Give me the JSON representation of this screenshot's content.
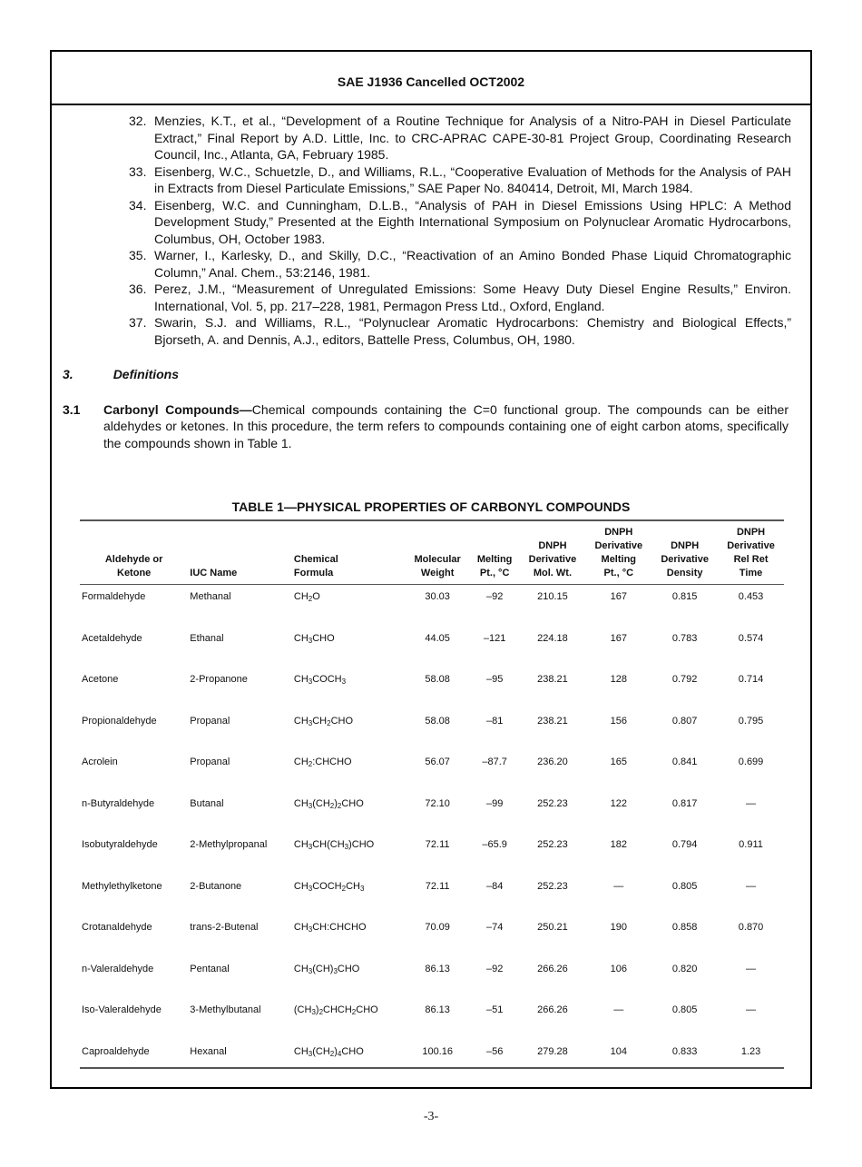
{
  "header": {
    "title": "SAE J1936 Cancelled OCT2002"
  },
  "references": [
    {
      "num": "32.",
      "text": "Menzies, K.T., et al., “Development of a Routine Technique for Analysis of a Nitro-PAH in Diesel Particulate Extract,” Final Report by A.D. Little, Inc. to CRC-APRAC CAPE-30-81 Project Group, Coordinating Research Council, Inc., Atlanta, GA, February 1985."
    },
    {
      "num": "33.",
      "text": "Eisenberg, W.C., Schuetzle, D., and Williams, R.L., “Cooperative Evaluation of Methods for the Analysis of PAH in Extracts from Diesel Particulate Emissions,” SAE Paper No. 840414, Detroit, MI, March 1984."
    },
    {
      "num": "34.",
      "text": "Eisenberg, W.C. and Cunningham, D.L.B., “Analysis of PAH in Diesel Emissions Using HPLC: A Method Development Study,” Presented at the Eighth International Symposium on Polynuclear Aromatic Hydrocarbons, Columbus, OH, October 1983."
    },
    {
      "num": "35.",
      "text": "Warner, I., Karlesky, D., and Skilly, D.C., “Reactivation of an Amino Bonded Phase Liquid Chromatographic Column,” Anal. Chem., 53:2146, 1981."
    },
    {
      "num": "36.",
      "text": "Perez, J.M., “Measurement of Unregulated Emissions: Some Heavy Duty Diesel Engine Results,” Environ. International, Vol. 5, pp. 217–228, 1981, Permagon Press Ltd., Oxford, England."
    },
    {
      "num": "37.",
      "text": "Swarin, S.J. and Williams, R.L., “Polynuclear Aromatic Hydrocarbons: Chemistry and Biological Effects,” Bjorseth, A. and Dennis, A.J., editors, Battelle Press, Columbus, OH, 1980."
    }
  ],
  "section3": {
    "num": "3.",
    "title": "Definitions"
  },
  "section31": {
    "num": "3.1",
    "term": "Carbonyl Compounds—",
    "text": "Chemical compounds containing the C=0 functional group.  The compounds can be either aldehydes or ketones.  In this procedure, the term refers to compounds containing one of eight carbon atoms, specifically the compounds shown in Table 1."
  },
  "table": {
    "title": "TABLE 1—PHYSICAL PROPERTIES OF CARBONYL COMPOUNDS",
    "headers": [
      [
        "Aldehyde or",
        "Ketone"
      ],
      [
        "IUC Name"
      ],
      [
        "Chemical",
        "Formula"
      ],
      [
        "Molecular",
        "Weight"
      ],
      [
        "Melting",
        "Pt., °C"
      ],
      [
        "DNPH",
        "Derivative",
        "Mol. Wt."
      ],
      [
        "DNPH",
        "Derivative",
        "Melting",
        "Pt., °C"
      ],
      [
        "DNPH",
        "Derivative",
        "Density"
      ],
      [
        "DNPH",
        "Derivative",
        "Rel Ret",
        "Time"
      ]
    ],
    "rows": [
      {
        "name": "Formaldehyde",
        "iuc": "Methanal",
        "formula": [
          [
            "CH",
            ""
          ],
          [
            "2",
            "s"
          ],
          [
            "O",
            ""
          ]
        ],
        "mw": "30.03",
        "mp": "–92",
        "dmw": "210.15",
        "dmp": "167",
        "dens": "0.815",
        "rrt": "0.453"
      },
      {
        "name": "Acetaldehyde",
        "iuc": "Ethanal",
        "formula": [
          [
            "CH",
            ""
          ],
          [
            "3",
            "s"
          ],
          [
            "CHO",
            ""
          ]
        ],
        "mw": "44.05",
        "mp": "–121",
        "dmw": "224.18",
        "dmp": "167",
        "dens": "0.783",
        "rrt": "0.574"
      },
      {
        "name": "Acetone",
        "iuc": "2-Propanone",
        "formula": [
          [
            "CH",
            ""
          ],
          [
            "3",
            "s"
          ],
          [
            "COCH",
            ""
          ],
          [
            "3",
            "s"
          ]
        ],
        "mw": "58.08",
        "mp": "–95",
        "dmw": "238.21",
        "dmp": "128",
        "dens": "0.792",
        "rrt": "0.714"
      },
      {
        "name": "Propionaldehyde",
        "iuc": "Propanal",
        "formula": [
          [
            "CH",
            ""
          ],
          [
            "3",
            "s"
          ],
          [
            "CH",
            ""
          ],
          [
            "2",
            "s"
          ],
          [
            "CHO",
            ""
          ]
        ],
        "mw": "58.08",
        "mp": "–81",
        "dmw": "238.21",
        "dmp": "156",
        "dens": "0.807",
        "rrt": "0.795"
      },
      {
        "name": "Acrolein",
        "iuc": "Propanal",
        "formula": [
          [
            "CH",
            ""
          ],
          [
            "2",
            "s"
          ],
          [
            ":CHCHO",
            ""
          ]
        ],
        "mw": "56.07",
        "mp": "–87.7",
        "dmw": "236.20",
        "dmp": "165",
        "dens": "0.841",
        "rrt": "0.699"
      },
      {
        "name": "n-Butyraldehyde",
        "iuc": "Butanal",
        "formula": [
          [
            "CH",
            ""
          ],
          [
            "3",
            "s"
          ],
          [
            "(CH",
            ""
          ],
          [
            "2",
            "s"
          ],
          [
            ")",
            ""
          ],
          [
            "2",
            "s"
          ],
          [
            "CHO",
            ""
          ]
        ],
        "mw": "72.10",
        "mp": "–99",
        "dmw": "252.23",
        "dmp": "122",
        "dens": "0.817",
        "rrt": "—"
      },
      {
        "name": "Isobutyraldehyde",
        "iuc": "2-Methylpropanal",
        "formula": [
          [
            "CH",
            ""
          ],
          [
            "3",
            "s"
          ],
          [
            "CH(CH",
            ""
          ],
          [
            "3",
            "s"
          ],
          [
            ")CHO",
            ""
          ]
        ],
        "mw": "72.11",
        "mp": "–65.9",
        "dmw": "252.23",
        "dmp": "182",
        "dens": "0.794",
        "rrt": "0.911"
      },
      {
        "name": "Methylethylketone",
        "iuc": "2-Butanone",
        "formula": [
          [
            "CH",
            ""
          ],
          [
            "3",
            "s"
          ],
          [
            "COCH",
            ""
          ],
          [
            "2",
            "s"
          ],
          [
            "CH",
            ""
          ],
          [
            "3",
            "s"
          ]
        ],
        "mw": "72.11",
        "mp": "–84",
        "dmw": "252.23",
        "dmp": "—",
        "dens": "0.805",
        "rrt": "—"
      },
      {
        "name": "Crotanaldehyde",
        "iuc": "trans-2-Butenal",
        "formula": [
          [
            "CH",
            ""
          ],
          [
            "3",
            "s"
          ],
          [
            "CH:CHCHO",
            ""
          ]
        ],
        "mw": "70.09",
        "mp": "–74",
        "dmw": "250.21",
        "dmp": "190",
        "dens": "0.858",
        "rrt": "0.870"
      },
      {
        "name": "n-Valeraldehyde",
        "iuc": "Pentanal",
        "formula": [
          [
            "CH",
            ""
          ],
          [
            "3",
            "s"
          ],
          [
            "(CH)",
            ""
          ],
          [
            "3",
            "s"
          ],
          [
            "CHO",
            ""
          ]
        ],
        "mw": "86.13",
        "mp": "–92",
        "dmw": "266.26",
        "dmp": "106",
        "dens": "0.820",
        "rrt": "—"
      },
      {
        "name": "Iso-Valeraldehyde",
        "iuc": "3-Methylbutanal",
        "formula": [
          [
            "(CH",
            ""
          ],
          [
            "3",
            "s"
          ],
          [
            ")",
            ""
          ],
          [
            "2",
            "s"
          ],
          [
            "CHCH",
            ""
          ],
          [
            "2",
            "s"
          ],
          [
            "CHO",
            ""
          ]
        ],
        "mw": "86.13",
        "mp": "–51",
        "dmw": "266.26",
        "dmp": "—",
        "dens": "0.805",
        "rrt": "—"
      },
      {
        "name": "Caproaldehyde",
        "iuc": "Hexanal",
        "formula": [
          [
            "CH",
            ""
          ],
          [
            "3",
            "s"
          ],
          [
            "(CH",
            ""
          ],
          [
            "2",
            "s"
          ],
          [
            ")",
            ""
          ],
          [
            "4",
            "s"
          ],
          [
            "CHO",
            ""
          ]
        ],
        "mw": "100.16",
        "mp": "–56",
        "dmw": "279.28",
        "dmp": "104",
        "dens": "0.833",
        "rrt": "1.23"
      }
    ]
  },
  "footer": {
    "page": "-3-"
  }
}
